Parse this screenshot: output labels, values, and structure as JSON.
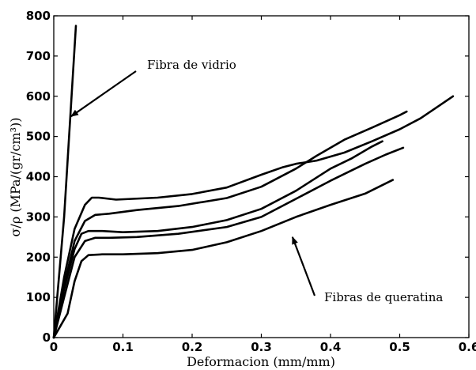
{
  "chart_data": {
    "type": "line",
    "title": "",
    "xlabel": "Deformacion (mm/mm)",
    "ylabel": "σ/ρ (MPa/(gr/cm³))",
    "xlim": [
      0,
      0.6
    ],
    "ylim": [
      0,
      800
    ],
    "xticks": [
      0,
      0.1,
      0.2,
      0.3,
      0.4,
      0.5,
      0.6
    ],
    "yticks": [
      0,
      100,
      200,
      300,
      400,
      500,
      600,
      700,
      800
    ],
    "xtick_labels": [
      "0",
      "0.1",
      "0.2",
      "0.3",
      "0.4",
      "0.5",
      "0.6"
    ],
    "ytick_labels": [
      "0",
      "100",
      "200",
      "300",
      "400",
      "500",
      "600",
      "700",
      "800"
    ],
    "grid": false,
    "series": [
      {
        "x": [
          0,
          0.015,
          0.032
        ],
        "y": [
          0,
          300,
          775
        ]
      },
      {
        "x": [
          0,
          0.015,
          0.03,
          0.045,
          0.055,
          0.065,
          0.09,
          0.15,
          0.2,
          0.25,
          0.3,
          0.33,
          0.35,
          0.38,
          0.42,
          0.46,
          0.5,
          0.53,
          0.56,
          0.577
        ],
        "y": [
          0,
          150,
          270,
          330,
          348,
          348,
          343,
          348,
          357,
          373,
          405,
          423,
          432,
          440,
          460,
          488,
          518,
          545,
          580,
          600
        ]
      },
      {
        "x": [
          0,
          0.015,
          0.03,
          0.045,
          0.06,
          0.08,
          0.12,
          0.18,
          0.25,
          0.3,
          0.35,
          0.38,
          0.42,
          0.46,
          0.5,
          0.51
        ],
        "y": [
          0,
          130,
          240,
          290,
          305,
          308,
          317,
          327,
          347,
          375,
          420,
          452,
          492,
          522,
          553,
          562
        ]
      },
      {
        "x": [
          0,
          0.015,
          0.03,
          0.04,
          0.05,
          0.07,
          0.1,
          0.15,
          0.2,
          0.25,
          0.3,
          0.35,
          0.4,
          0.43,
          0.46,
          0.475
        ],
        "y": [
          0,
          120,
          220,
          258,
          265,
          265,
          262,
          265,
          275,
          292,
          320,
          365,
          420,
          445,
          475,
          488
        ]
      },
      {
        "x": [
          0,
          0.015,
          0.03,
          0.045,
          0.06,
          0.08,
          0.12,
          0.18,
          0.25,
          0.3,
          0.35,
          0.4,
          0.45,
          0.48,
          0.505
        ],
        "y": [
          0,
          100,
          200,
          240,
          248,
          248,
          250,
          258,
          275,
          300,
          345,
          390,
          432,
          455,
          472
        ]
      },
      {
        "x": [
          0,
          0.01,
          0.02,
          0.03,
          0.04,
          0.05,
          0.07,
          0.1,
          0.15,
          0.2,
          0.25,
          0.3,
          0.35,
          0.4,
          0.45,
          0.49
        ],
        "y": [
          0,
          30,
          60,
          140,
          190,
          205,
          207,
          207,
          210,
          218,
          237,
          265,
          300,
          330,
          358,
          392
        ]
      }
    ],
    "annotations": [
      {
        "text": "Fibra de vidrio",
        "arrow_to": [
          0.025,
          550
        ]
      },
      {
        "text": "Fibras de queratina",
        "arrow_to": [
          0.345,
          250
        ]
      }
    ]
  }
}
